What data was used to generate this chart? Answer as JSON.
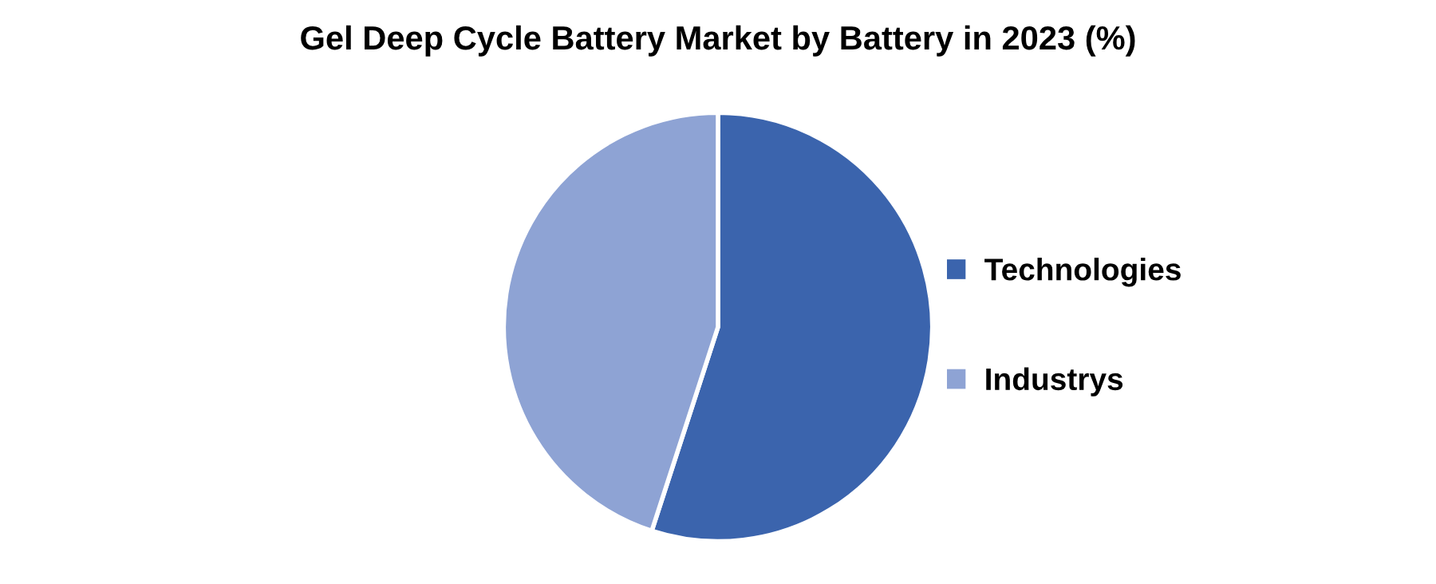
{
  "chart_data": {
    "type": "pie",
    "title": "Gel Deep Cycle Battery Market by Battery in 2023 (%)",
    "categories": [
      "Technologies",
      "Industrys"
    ],
    "values": [
      55,
      45
    ],
    "colors": [
      "#3b64ad",
      "#8ea3d4"
    ],
    "legend": "right"
  }
}
